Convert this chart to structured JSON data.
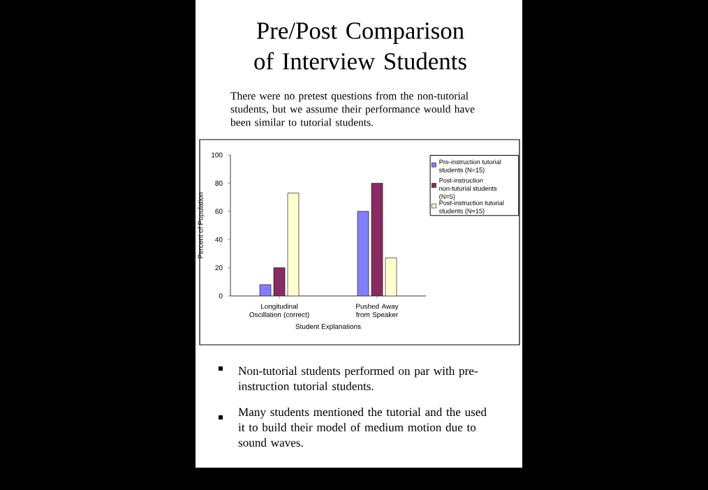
{
  "chart_data": {
    "type": "bar",
    "title": "Pre/Post Comparison of Interview Students",
    "subtitle": "There were no pretest questions from the non-tutorial students, but we assume their performance would have been similar to tutorial students.",
    "xlabel": "Student Explanations",
    "ylabel": "Percent of Population",
    "categories": [
      "Longitudinal Oscillation (correct)",
      "Pushed Away from Speaker"
    ],
    "series": [
      {
        "name": "Pre-instruction tutorial students (N=15)",
        "color": "#8080ff",
        "values": [
          8,
          60
        ]
      },
      {
        "name": "Post-instruction non-tutorial students (N=5)",
        "color": "#8a2a62",
        "values": [
          20,
          80
        ]
      },
      {
        "name": "Post-instruction tutorial students (N=15)",
        "color": "#ffffcc",
        "values": [
          73,
          27
        ]
      }
    ],
    "ylim": [
      0,
      100
    ],
    "yticks": [
      0,
      20,
      40,
      60,
      80,
      100
    ],
    "legend": "top right",
    "annotations": [
      "Non-tutorial students performed on par with pre-instruction tutorial students.",
      "Many students mentioned the tutorial and the used it to build their model of medium motion due to sound waves."
    ]
  }
}
